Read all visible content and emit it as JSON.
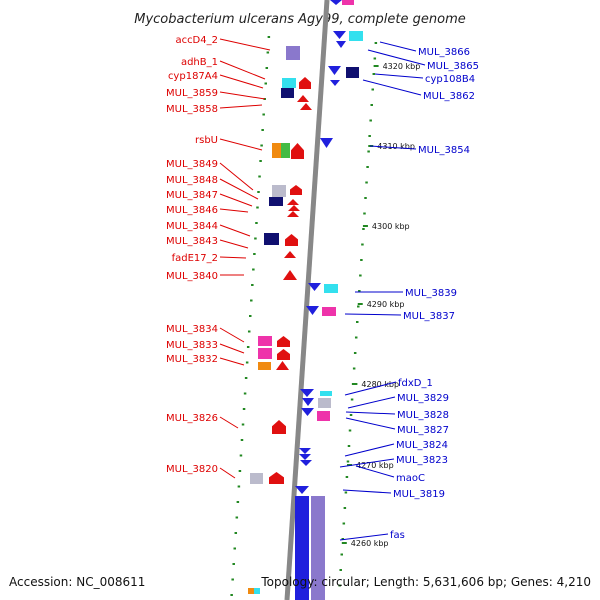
{
  "title": "Mycobacterium ulcerans Agy99, complete genome",
  "footer": {
    "accession": "Accession: NC_008611",
    "topology": "Topology: circular; Length: 5,631,606 bp; Genes: 4,210"
  },
  "colors": {
    "left_label": "#dd0000",
    "right_label": "#0000cc",
    "backbone": "#888888",
    "tick": "#228822"
  },
  "scale_ticks": [
    "4320 kbp",
    "4310 kbp",
    "4300 kbp",
    "4290 kbp",
    "4280 kbp",
    "4270 kbp",
    "4260 kbp"
  ],
  "left_labels": [
    "accD4_2",
    "adhB_1",
    "cyp187A4",
    "MUL_3859",
    "MUL_3858",
    "rsbU",
    "MUL_3849",
    "MUL_3848",
    "MUL_3847",
    "MUL_3846",
    "MUL_3844",
    "MUL_3843",
    "fadE17_2",
    "MUL_3840",
    "MUL_3834",
    "MUL_3833",
    "MUL_3832",
    "MUL_3826",
    "MUL_3820"
  ],
  "right_labels": [
    "MUL_3866",
    "MUL_3865",
    "cyp108B4",
    "MUL_3862",
    "MUL_3854",
    "MUL_3839",
    "MUL_3837",
    "fdxD_1",
    "MUL_3829",
    "MUL_3828",
    "MUL_3827",
    "MUL_3824",
    "MUL_3823",
    "maoC",
    "MUL_3819",
    "fas"
  ]
}
